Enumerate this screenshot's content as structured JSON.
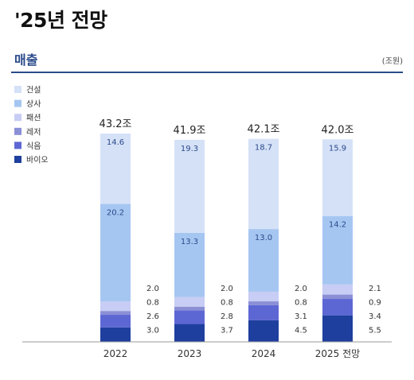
{
  "header": {
    "title": "'25년 전망"
  },
  "section": {
    "title": "매출",
    "unit": "(조원)"
  },
  "colors": {
    "건설": "#d5e1f7",
    "상사": "#a6c6f2",
    "패션": "#c7cdf4",
    "레저": "#8a8fd6",
    "식음": "#5d67d4",
    "바이오": "#1e3f9e",
    "axis": "#999999",
    "rule": "#2a4a8a"
  },
  "chart_data": {
    "type": "bar",
    "stacked": true,
    "categories": [
      "2022",
      "2023",
      "2024",
      "2025 전망"
    ],
    "totals": [
      "43.2조",
      "41.9조",
      "42.1조",
      "42.0조"
    ],
    "series": [
      {
        "name": "바이오",
        "values": [
          3.0,
          3.7,
          4.5,
          5.5
        ],
        "label_position": "side"
      },
      {
        "name": "식음",
        "values": [
          2.6,
          2.8,
          3.1,
          3.4
        ],
        "label_position": "side"
      },
      {
        "name": "레저",
        "values": [
          0.8,
          0.8,
          0.8,
          0.9
        ],
        "label_position": "side"
      },
      {
        "name": "패션",
        "values": [
          2.0,
          2.0,
          2.0,
          2.1
        ],
        "label_position": "side"
      },
      {
        "name": "상사",
        "values": [
          20.2,
          13.3,
          13.0,
          14.2
        ],
        "label_position": "inside"
      },
      {
        "name": "건설",
        "values": [
          14.6,
          19.3,
          18.7,
          15.9
        ],
        "label_position": "inside"
      }
    ],
    "legend": [
      "건설",
      "상사",
      "패션",
      "레저",
      "식음",
      "바이오"
    ],
    "legend_position": "top-left",
    "ylim": [
      0,
      43.2
    ],
    "grid": false,
    "title": "",
    "xlabel": "",
    "ylabel": ""
  }
}
